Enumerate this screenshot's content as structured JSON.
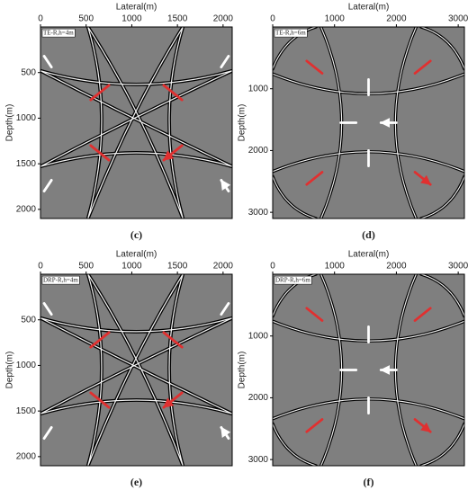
{
  "panels": [
    {
      "label": "(c)",
      "title": "TE-R,h=4m",
      "pattern": "cross",
      "xlabel": "Lateral(m)",
      "ylabel": "Depth(m)",
      "xlim": [
        0,
        2100
      ],
      "ylim": [
        0,
        2100
      ],
      "xticks": [
        0,
        500,
        1000,
        1500,
        2000
      ],
      "yticks": [
        500,
        1000,
        1500,
        2000
      ]
    },
    {
      "label": "(d)",
      "title": "TE-R,h=6m",
      "pattern": "cusp",
      "xlabel": "Lateral(m)",
      "ylabel": "Depth(m)",
      "xlim": [
        0,
        3100
      ],
      "ylim": [
        0,
        3100
      ],
      "xticks": [
        0,
        1000,
        2000,
        3000
      ],
      "yticks": [
        1000,
        2000,
        3000
      ]
    },
    {
      "label": "(e)",
      "title": "DRP-R,h=4m",
      "pattern": "cross",
      "xlabel": "Lateral(m)",
      "ylabel": "Depth(m)",
      "xlim": [
        0,
        2100
      ],
      "ylim": [
        0,
        2100
      ],
      "xticks": [
        0,
        500,
        1000,
        1500,
        2000
      ],
      "yticks": [
        500,
        1000,
        1500,
        2000
      ]
    },
    {
      "label": "(f)",
      "title": "DRP-R,h=6m",
      "pattern": "cusp",
      "xlabel": "Lateral(m)",
      "ylabel": "Depth(m)",
      "xlim": [
        0,
        3100
      ],
      "ylim": [
        0,
        3100
      ],
      "xticks": [
        0,
        1000,
        2000,
        3000
      ],
      "yticks": [
        1000,
        2000,
        3000
      ]
    }
  ]
}
